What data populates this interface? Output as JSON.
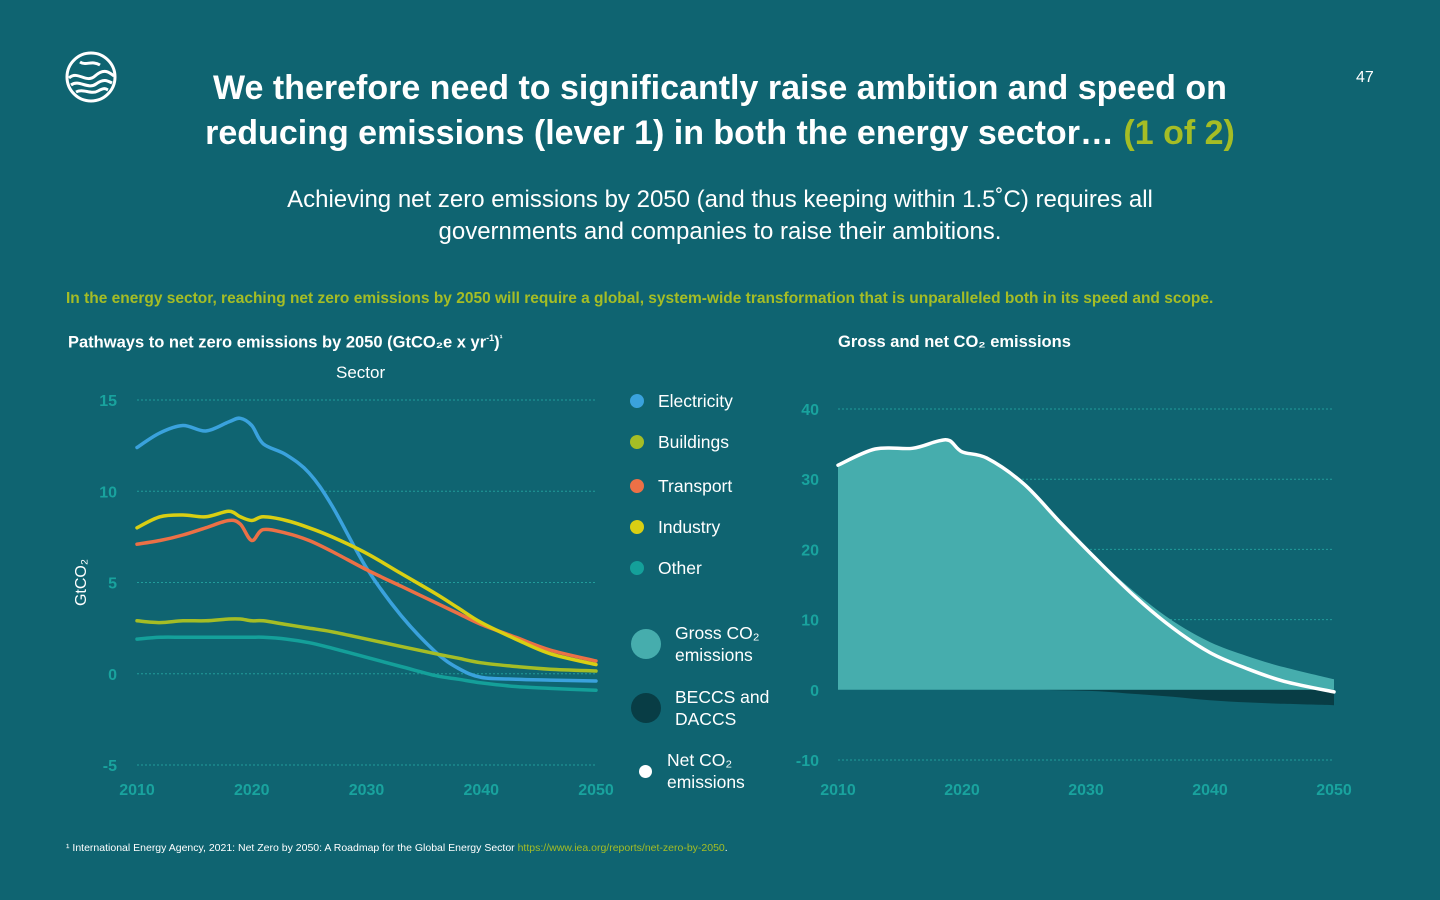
{
  "page": {
    "number": "47",
    "title_main": "We therefore need to significantly raise ambition and speed on reducing emissions (lever 1) in both the energy sector…",
    "title_accent": "(1 of 2)",
    "subtitle": "Achieving net zero emissions by 2050 (and thus keeping within 1.5˚C) requires all governments and companies to raise their ambitions.",
    "highlight": "In the energy sector, reaching net zero emissions by 2050 will require a global, system-wide transformation that is unparalleled both in its speed and scope.",
    "footnote": {
      "marker": "¹",
      "text": "International Energy Agency, 2021: Net Zero by 2050: A Roadmap for the Global Energy Sector",
      "link": "https://www.iea.org/reports/net-zero-by-2050",
      "end": "."
    }
  },
  "colors": {
    "background": "#0f6471",
    "accent": "#a5bd25",
    "electricity": "#3aa2dd",
    "buildings": "#a5bd25",
    "transport": "#ec7046",
    "industry": "#d9cf13",
    "other": "#14a09a",
    "gross": "#46adad",
    "beccs": "#083d45",
    "net": "#ffffff",
    "axis_text": "#19a39e"
  },
  "legend": [
    {
      "key": "electricity",
      "label": "Electricity"
    },
    {
      "key": "buildings",
      "label": "Buildings"
    },
    {
      "key": "transport",
      "label": "Transport"
    },
    {
      "key": "industry",
      "label": "Industry"
    },
    {
      "key": "other",
      "label": "Other"
    },
    {
      "key": "gross",
      "label": "Gross CO₂ emissions"
    },
    {
      "key": "beccs",
      "label": "BECCS and DACCS"
    },
    {
      "key": "net",
      "label": "Net CO₂ emissions"
    }
  ],
  "chart_data": [
    {
      "type": "line",
      "title": "Pathways to net zero emissions by 2050 (GtCO₂e x yr",
      "title_sup": "-1",
      "title_close": ")",
      "title_footnote": "¹",
      "subtitle": "Sector",
      "ylabel": "GtCO₂",
      "xlabel": "",
      "xlim": [
        2010,
        2050
      ],
      "ylim": [
        -5,
        15
      ],
      "xticks": [
        2010,
        2020,
        2030,
        2040,
        2050
      ],
      "yticks": [
        -5,
        0,
        5,
        10,
        15
      ],
      "grid": true,
      "legend_position": "right",
      "x": [
        2010,
        2012,
        2014,
        2016,
        2018,
        2019,
        2020,
        2021,
        2023,
        2025,
        2027,
        2030,
        2033,
        2036,
        2038,
        2040,
        2043,
        2046,
        2050
      ],
      "series": [
        {
          "name": "Electricity",
          "key": "electricity",
          "values": [
            12.4,
            13.2,
            13.6,
            13.3,
            13.8,
            14.0,
            13.6,
            12.6,
            12.0,
            11.0,
            9.2,
            5.8,
            3.2,
            1.2,
            0.3,
            -0.2,
            -0.3,
            -0.35,
            -0.4
          ]
        },
        {
          "name": "Buildings",
          "key": "buildings",
          "values": [
            2.9,
            2.8,
            2.9,
            2.9,
            3.0,
            3.0,
            2.9,
            2.9,
            2.7,
            2.5,
            2.3,
            1.9,
            1.5,
            1.1,
            0.85,
            0.6,
            0.4,
            0.25,
            0.15
          ]
        },
        {
          "name": "Transport",
          "key": "transport",
          "values": [
            7.1,
            7.3,
            7.6,
            8.0,
            8.4,
            8.2,
            7.3,
            7.9,
            7.7,
            7.3,
            6.7,
            5.7,
            4.8,
            3.9,
            3.3,
            2.7,
            2.0,
            1.3,
            0.7
          ]
        },
        {
          "name": "Industry",
          "key": "industry",
          "values": [
            8.0,
            8.6,
            8.7,
            8.6,
            8.9,
            8.6,
            8.4,
            8.6,
            8.4,
            8.0,
            7.5,
            6.6,
            5.5,
            4.4,
            3.6,
            2.8,
            1.9,
            1.1,
            0.5
          ]
        },
        {
          "name": "Other",
          "key": "other",
          "values": [
            1.9,
            2.0,
            2.0,
            2.0,
            2.0,
            2.0,
            2.0,
            2.0,
            1.9,
            1.7,
            1.4,
            0.9,
            0.4,
            -0.1,
            -0.3,
            -0.5,
            -0.7,
            -0.8,
            -0.9
          ]
        }
      ]
    },
    {
      "type": "area",
      "title": "Gross and net CO₂ emissions",
      "xlabel": "",
      "ylabel": "",
      "xlim": [
        2010,
        2050
      ],
      "ylim": [
        -10,
        40
      ],
      "xticks": [
        2010,
        2020,
        2030,
        2040,
        2050
      ],
      "yticks": [
        -10,
        0,
        10,
        20,
        30,
        40
      ],
      "grid": true,
      "x": [
        2010,
        2013,
        2016,
        2018,
        2019,
        2020,
        2022,
        2025,
        2028,
        2031,
        2034,
        2037,
        2040,
        2043,
        2046,
        2050
      ],
      "series": [
        {
          "name": "Gross CO₂ emissions",
          "key": "gross",
          "values": [
            32,
            34.3,
            34.4,
            35.4,
            35.5,
            33.9,
            33.0,
            29.3,
            23.8,
            18.5,
            13.8,
            9.8,
            6.8,
            4.8,
            3.2,
            1.5
          ]
        },
        {
          "name": "BECCS and DACCS",
          "key": "beccs",
          "values": [
            0,
            0,
            0,
            0,
            0,
            0,
            0,
            0,
            -0.05,
            -0.2,
            -0.6,
            -1.0,
            -1.5,
            -1.8,
            -2.0,
            -2.2
          ]
        },
        {
          "name": "Net CO₂ emissions",
          "key": "net",
          "values": [
            32,
            34.3,
            34.4,
            35.4,
            35.5,
            33.9,
            33.0,
            29.3,
            23.7,
            18.3,
            13.2,
            8.8,
            5.3,
            3.0,
            1.2,
            -0.3
          ]
        }
      ]
    }
  ]
}
